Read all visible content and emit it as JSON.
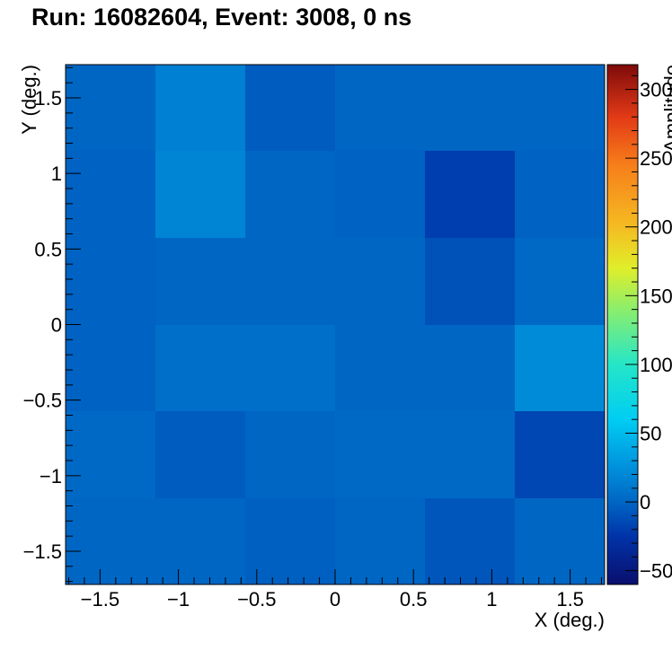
{
  "chart_data": {
    "type": "heatmap",
    "title": "Run: 16082604, Event: 3008, 0 ns",
    "xlabel": "X (deg.)",
    "ylabel": "Y (deg.)",
    "zlabel": "Amplitude",
    "xlim": [
      -1.72,
      1.72
    ],
    "ylim": [
      -1.72,
      1.72
    ],
    "zlim": [
      -60,
      318
    ],
    "x_ticks": [
      {
        "value": -1.5,
        "label": "−1.5"
      },
      {
        "value": -1,
        "label": "−1"
      },
      {
        "value": -0.5,
        "label": "−0.5"
      },
      {
        "value": 0,
        "label": "0"
      },
      {
        "value": 0.5,
        "label": "0.5"
      },
      {
        "value": 1,
        "label": "1"
      },
      {
        "value": 1.5,
        "label": "1.5"
      }
    ],
    "y_ticks": [
      {
        "value": -1.5,
        "label": "−1.5"
      },
      {
        "value": -1,
        "label": "−1"
      },
      {
        "value": -0.5,
        "label": "−0.5"
      },
      {
        "value": 0,
        "label": "0"
      },
      {
        "value": 0.5,
        "label": "0.5"
      },
      {
        "value": 1,
        "label": "1"
      },
      {
        "value": 1.5,
        "label": "1.5"
      }
    ],
    "z_ticks": [
      {
        "value": -50,
        "label": "−50"
      },
      {
        "value": 0,
        "label": "0"
      },
      {
        "value": 50,
        "label": "50"
      },
      {
        "value": 100,
        "label": "100"
      },
      {
        "value": 150,
        "label": "150"
      },
      {
        "value": 200,
        "label": "200"
      },
      {
        "value": 250,
        "label": "250"
      },
      {
        "value": 300,
        "label": "300"
      }
    ],
    "x_bin_edges": [
      -1.72,
      -1.147,
      -0.573,
      0,
      0.573,
      1.147,
      1.72
    ],
    "y_bin_edges": [
      -1.72,
      -1.147,
      -0.573,
      0,
      0.573,
      1.147,
      1.72
    ],
    "z_rows_top_to_bottom": [
      [
        0,
        15,
        -5,
        0,
        0,
        0
      ],
      [
        -2,
        18,
        0,
        -2,
        -20,
        -2
      ],
      [
        -2,
        0,
        0,
        0,
        -10,
        2
      ],
      [
        -2,
        5,
        5,
        0,
        0,
        22
      ],
      [
        2,
        -5,
        0,
        2,
        2,
        -15
      ],
      [
        0,
        0,
        -3,
        0,
        -8,
        0
      ]
    ],
    "colorscale": [
      {
        "value": -60,
        "color": "#0a0f6e"
      },
      {
        "value": -25,
        "color": "#0033a8"
      },
      {
        "value": 0,
        "color": "#0066c4"
      },
      {
        "value": 30,
        "color": "#0099e0"
      },
      {
        "value": 60,
        "color": "#00cdf3"
      },
      {
        "value": 100,
        "color": "#25e6c8"
      },
      {
        "value": 140,
        "color": "#8bee6c"
      },
      {
        "value": 170,
        "color": "#e0ee2a"
      },
      {
        "value": 200,
        "color": "#f5bc22"
      },
      {
        "value": 245,
        "color": "#f77e1a"
      },
      {
        "value": 280,
        "color": "#e23a16"
      },
      {
        "value": 318,
        "color": "#7e0a0a"
      }
    ]
  }
}
